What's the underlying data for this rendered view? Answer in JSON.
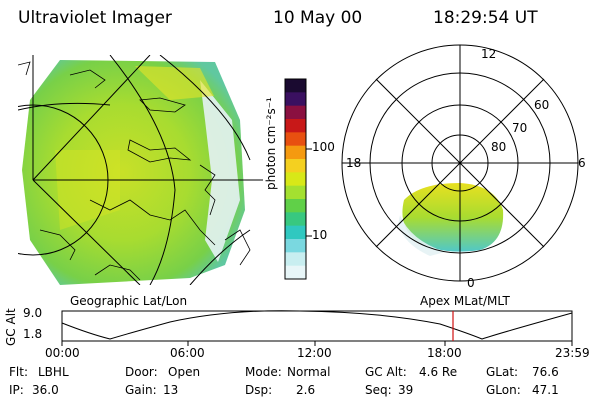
{
  "header": {
    "instrument": "Ultraviolet Imager",
    "date": "10 May 00",
    "time": "18:29:54 UT"
  },
  "colorbar": {
    "unit_label": "photon cm⁻²s⁻¹",
    "tick_100": "100",
    "tick_10": "10",
    "colors": [
      "#1a0a30",
      "#3a1060",
      "#8a1040",
      "#c81818",
      "#e85010",
      "#f59a10",
      "#f4d020",
      "#d8e818",
      "#a4e030",
      "#60d048",
      "#38c880",
      "#30c8c0",
      "#7ad8e0",
      "#c8eef0",
      "#e8f6f8"
    ]
  },
  "polar_plot": {
    "mlt_top": "12",
    "mlt_left": "18",
    "mlt_right": "6",
    "mlt_bottom": "0",
    "lat_60": "60",
    "lat_70": "70",
    "lat_80": "80"
  },
  "map_labels": {
    "left": "Geographic Lat/Lon",
    "right": "Apex MLat/MLT"
  },
  "altitude_panel": {
    "axis_label": "GC Alt",
    "ymax": "9.0",
    "ymin": "1.8",
    "time_ticks": [
      "00:00",
      "06:00",
      "12:00",
      "18:00",
      "23:59"
    ]
  },
  "footer": {
    "row1": [
      {
        "key": "Flt:",
        "val": "LBHL"
      },
      {
        "key": "Door:",
        "val": "Open"
      },
      {
        "key": "Mode:",
        "val": "Normal"
      },
      {
        "key": "GC Alt:",
        "val": "4.6 Re"
      },
      {
        "key": "GLat:",
        "val": "76.6"
      }
    ],
    "row2": [
      {
        "key": "IP:",
        "val": "36.0"
      },
      {
        "key": "Gain:",
        "val": "13"
      },
      {
        "key": "Dsp:",
        "val": "2.6"
      },
      {
        "key": "Seq:",
        "val": "39"
      },
      {
        "key": "GLon:",
        "val": "47.1"
      }
    ]
  }
}
